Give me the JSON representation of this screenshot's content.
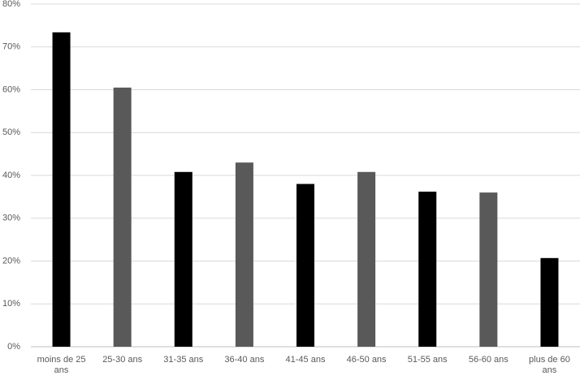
{
  "chart_data": {
    "type": "bar",
    "categories": [
      "moins de 25 ans",
      "25-30 ans",
      "31-35 ans",
      "36-40 ans",
      "41-45 ans",
      "46-50 ans",
      "51-55 ans",
      "56-60 ans",
      "plus de 60 ans"
    ],
    "values": [
      73.4,
      60.5,
      40.8,
      43,
      38,
      40.8,
      36.2,
      36,
      20.7
    ],
    "colors": [
      "#000000",
      "#595959",
      "#000000",
      "#595959",
      "#000000",
      "#595959",
      "#000000",
      "#595959",
      "#000000"
    ],
    "ylim": [
      0,
      80
    ],
    "yticks": [
      {
        "value": 0,
        "label": "0%"
      },
      {
        "value": 10,
        "label": "10%"
      },
      {
        "value": 20,
        "label": "20%"
      },
      {
        "value": 30,
        "label": "30%"
      },
      {
        "value": 40,
        "label": "40%"
      },
      {
        "value": 50,
        "label": "50%"
      },
      {
        "value": 60,
        "label": "60%"
      },
      {
        "value": 70,
        "label": "70%"
      },
      {
        "value": 80,
        "label": "80%"
      }
    ],
    "grid": true
  }
}
